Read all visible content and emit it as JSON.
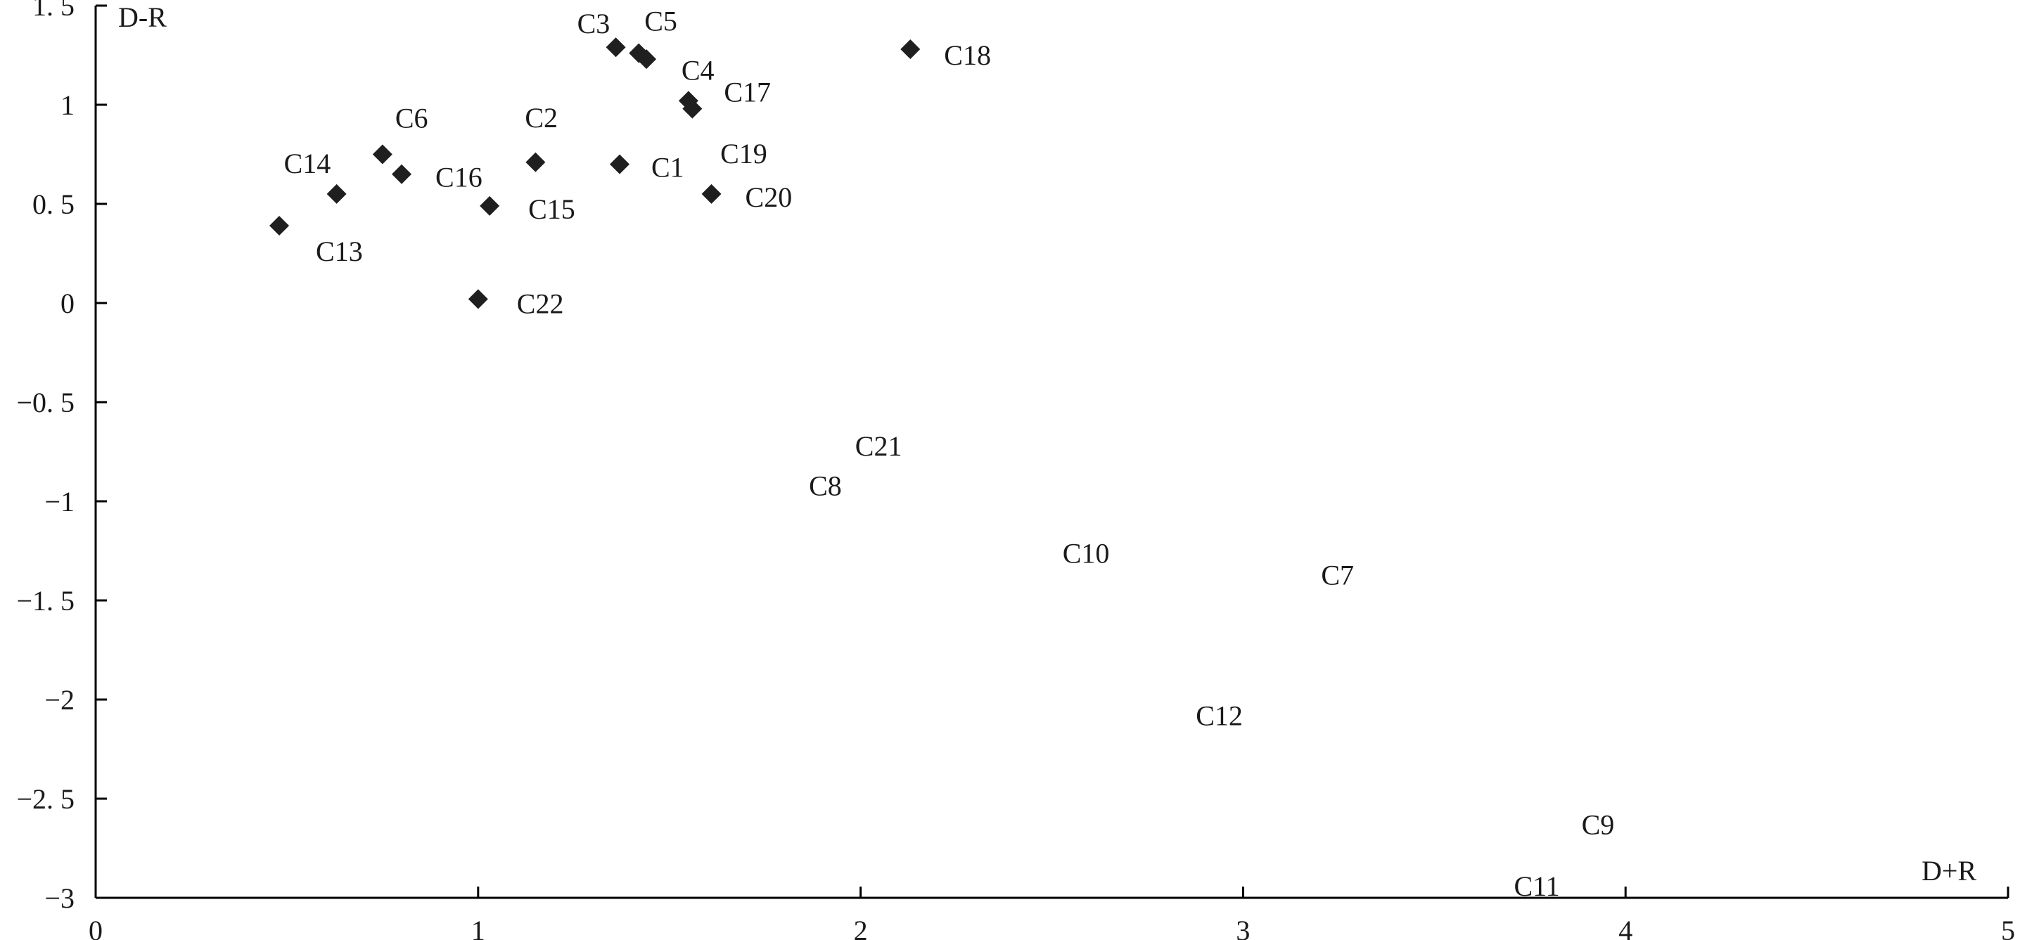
{
  "chart_data": {
    "type": "scatter",
    "title": "",
    "xlabel": "D+R",
    "ylabel": "D-R",
    "xlim": [
      0,
      5
    ],
    "ylim": [
      -3,
      1.5
    ],
    "x_ticks": [
      0,
      1,
      2,
      3,
      4,
      5
    ],
    "x_tick_labels": [
      "0",
      "1",
      "2",
      "3",
      "4",
      "5"
    ],
    "y_ticks": [
      1.5,
      1,
      0.5,
      0,
      -0.5,
      -1,
      -1.5,
      -2,
      -2.5,
      -3
    ],
    "y_tick_labels": [
      "1. 5",
      "1",
      "0. 5",
      "0",
      "−0. 5",
      "−1",
      "−1. 5",
      "−2",
      "−2. 5",
      "−3"
    ],
    "grid": false,
    "legend": "none",
    "marker_color": "#1f1f1f",
    "points": [
      {
        "label": "C1",
        "x": 1.37,
        "y": 0.7,
        "marker": true
      },
      {
        "label": "C2",
        "x": 1.15,
        "y": 0.71,
        "marker": true
      },
      {
        "label": "C3",
        "x": 1.36,
        "y": 1.29,
        "marker": true
      },
      {
        "label": "C4",
        "x": 1.55,
        "y": 1.02,
        "marker": true
      },
      {
        "label": "C5",
        "x": 1.42,
        "y": 1.26,
        "marker": true
      },
      {
        "label": "C6",
        "x": 0.75,
        "y": 0.75,
        "marker": true
      },
      {
        "label": "C7",
        "x": 3.25,
        "y": -1.37,
        "marker": false
      },
      {
        "label": "C8",
        "x": 1.92,
        "y": -0.92,
        "marker": false
      },
      {
        "label": "C9",
        "x": 3.94,
        "y": -2.63,
        "marker": false
      },
      {
        "label": "C10",
        "x": 2.62,
        "y": -1.26,
        "marker": false
      },
      {
        "label": "C11",
        "x": 3.8,
        "y": -2.94,
        "marker": false
      },
      {
        "label": "C12",
        "x": 2.95,
        "y": -2.08,
        "marker": false
      },
      {
        "label": "C13",
        "x": 0.48,
        "y": 0.39,
        "marker": true
      },
      {
        "label": "C14",
        "x": 0.63,
        "y": 0.55,
        "marker": true
      },
      {
        "label": "C15",
        "x": 1.03,
        "y": 0.49,
        "marker": true
      },
      {
        "label": "C16",
        "x": 0.8,
        "y": 0.65,
        "marker": true
      },
      {
        "label": "C17",
        "x": 1.56,
        "y": 0.98,
        "marker": true
      },
      {
        "label": "C18",
        "x": 2.13,
        "y": 1.28,
        "marker": true
      },
      {
        "label": "C19",
        "x": 1.44,
        "y": 1.23,
        "marker": true
      },
      {
        "label": "C20",
        "x": 1.61,
        "y": 0.55,
        "marker": true
      },
      {
        "label": "C21",
        "x": 2.05,
        "y": -0.72,
        "marker": false
      },
      {
        "label": "C22",
        "x": 1.0,
        "y": 0.02,
        "marker": true
      }
    ]
  }
}
